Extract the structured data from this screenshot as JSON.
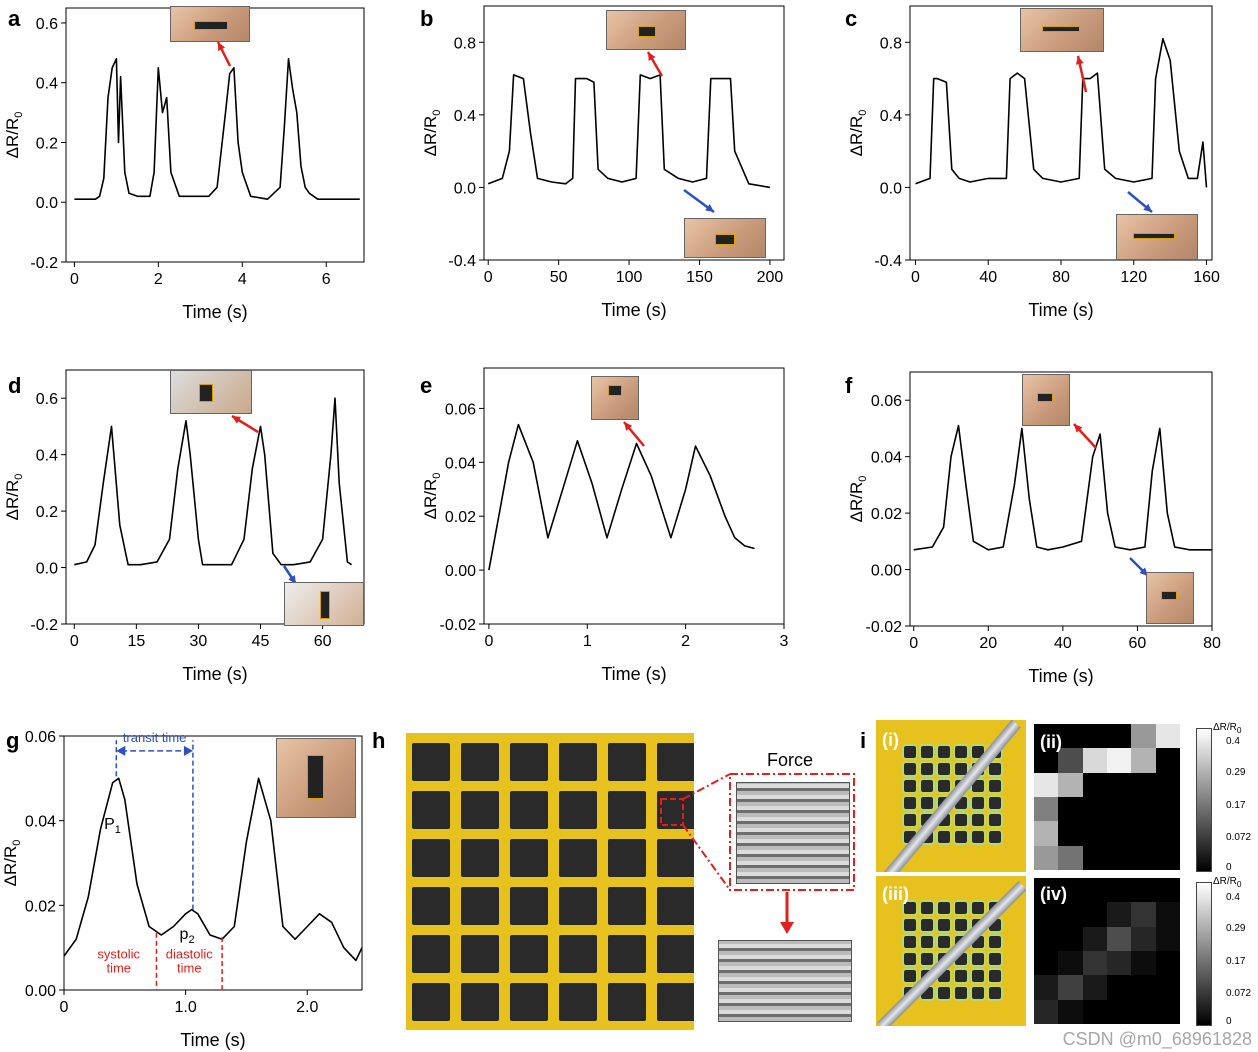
{
  "panel_labels": {
    "a": "a",
    "b": "b",
    "c": "c",
    "d": "d",
    "e": "e",
    "f": "f",
    "g": "g",
    "h": "h",
    "i": "i"
  },
  "xlabel": "Time (s)",
  "ylabel_main": "ΔR/R",
  "ylabel_sub": "0",
  "colors": {
    "line": "#000000",
    "arrow_red": "#e0201c",
    "arrow_blue": "#2c4fc2",
    "annot_red": "#e0201c",
    "annot_blue": "#2c4fc2"
  },
  "chart_data": [
    {
      "id": "a",
      "type": "line",
      "xlabel": "Time (s)",
      "ylabel": "ΔR/R0",
      "xlim": [
        -0.2,
        6.9
      ],
      "ylim": [
        -0.2,
        0.65
      ],
      "xticks": [
        0,
        2,
        4,
        6
      ],
      "yticks": [
        -0.2,
        0.0,
        0.2,
        0.4,
        0.6
      ],
      "x": [
        0,
        0.5,
        0.6,
        0.7,
        0.8,
        0.9,
        1.0,
        1.05,
        1.1,
        1.2,
        1.3,
        1.5,
        1.8,
        1.9,
        2.0,
        2.1,
        2.2,
        2.3,
        2.5,
        2.8,
        3.2,
        3.4,
        3.6,
        3.7,
        3.8,
        3.9,
        4.0,
        4.2,
        4.6,
        4.9,
        5.0,
        5.1,
        5.2,
        5.3,
        5.4,
        5.5,
        5.6,
        5.8,
        6.2,
        6.8
      ],
      "y": [
        0.01,
        0.01,
        0.02,
        0.08,
        0.35,
        0.45,
        0.48,
        0.2,
        0.42,
        0.1,
        0.03,
        0.02,
        0.02,
        0.1,
        0.45,
        0.3,
        0.35,
        0.1,
        0.02,
        0.02,
        0.02,
        0.05,
        0.3,
        0.43,
        0.45,
        0.2,
        0.1,
        0.02,
        0.01,
        0.05,
        0.25,
        0.48,
        0.38,
        0.3,
        0.12,
        0.05,
        0.03,
        0.01,
        0.01,
        0.01
      ]
    },
    {
      "id": "b",
      "type": "line",
      "xlabel": "Time (s)",
      "ylabel": "ΔR/R0",
      "xlim": [
        -3,
        210
      ],
      "ylim": [
        -0.4,
        1.0
      ],
      "xticks": [
        0,
        50,
        100,
        150,
        200
      ],
      "yticks": [
        -0.4,
        0.0,
        0.4,
        0.8
      ],
      "x": [
        0,
        10,
        15,
        18,
        25,
        30,
        35,
        45,
        55,
        60,
        62,
        70,
        75,
        78,
        85,
        95,
        105,
        108,
        115,
        122,
        125,
        135,
        145,
        155,
        158,
        165,
        172,
        175,
        185,
        200
      ],
      "y": [
        0.02,
        0.05,
        0.2,
        0.62,
        0.6,
        0.3,
        0.05,
        0.03,
        0.02,
        0.05,
        0.6,
        0.6,
        0.58,
        0.1,
        0.05,
        0.03,
        0.05,
        0.62,
        0.6,
        0.62,
        0.1,
        0.05,
        0.03,
        0.05,
        0.6,
        0.6,
        0.6,
        0.2,
        0.02,
        0.0
      ]
    },
    {
      "id": "c",
      "type": "line",
      "xlabel": "Time (s)",
      "ylabel": "ΔR/R0",
      "xlim": [
        -3,
        163
      ],
      "ylim": [
        -0.4,
        1.0
      ],
      "xticks": [
        0,
        40,
        80,
        120,
        160
      ],
      "yticks": [
        -0.4,
        0.0,
        0.4,
        0.8
      ],
      "x": [
        0,
        8,
        10,
        12,
        17,
        20,
        24,
        30,
        40,
        50,
        52,
        56,
        60,
        65,
        70,
        80,
        90,
        92,
        96,
        100,
        104,
        110,
        120,
        130,
        132,
        136,
        140,
        145,
        150,
        155,
        158,
        160
      ],
      "y": [
        0.02,
        0.05,
        0.6,
        0.6,
        0.58,
        0.1,
        0.05,
        0.03,
        0.05,
        0.05,
        0.6,
        0.63,
        0.6,
        0.1,
        0.05,
        0.03,
        0.05,
        0.6,
        0.6,
        0.63,
        0.1,
        0.05,
        0.03,
        0.05,
        0.6,
        0.82,
        0.7,
        0.2,
        0.05,
        0.05,
        0.25,
        0.0
      ]
    },
    {
      "id": "d",
      "type": "line",
      "xlabel": "Time (s)",
      "ylabel": "ΔR/R0",
      "xlim": [
        -2,
        70
      ],
      "ylim": [
        -0.2,
        0.7
      ],
      "xticks": [
        0,
        15,
        30,
        45,
        60
      ],
      "yticks": [
        -0.2,
        0.0,
        0.2,
        0.4,
        0.6
      ],
      "x": [
        0,
        3,
        5,
        7,
        9,
        11,
        13,
        16,
        20,
        23,
        25,
        27,
        28,
        30,
        31,
        34,
        38,
        41,
        43,
        45,
        46,
        48,
        50,
        53,
        57,
        60,
        62,
        63,
        64,
        66,
        67
      ],
      "y": [
        0.01,
        0.02,
        0.08,
        0.3,
        0.5,
        0.15,
        0.01,
        0.01,
        0.02,
        0.1,
        0.35,
        0.52,
        0.4,
        0.1,
        0.01,
        0.01,
        0.01,
        0.1,
        0.35,
        0.5,
        0.4,
        0.05,
        0.01,
        0.01,
        0.02,
        0.1,
        0.4,
        0.6,
        0.3,
        0.02,
        0.01
      ]
    },
    {
      "id": "e",
      "type": "line",
      "xlabel": "Time (s)",
      "ylabel": "ΔR/R0",
      "xlim": [
        -0.05,
        3.0
      ],
      "ylim": [
        -0.02,
        0.075
      ],
      "xticks": [
        0,
        1,
        2,
        3
      ],
      "yticks": [
        -0.02,
        0.0,
        0.02,
        0.04,
        0.06
      ],
      "x": [
        0,
        0.1,
        0.2,
        0.3,
        0.45,
        0.6,
        0.75,
        0.9,
        1.05,
        1.2,
        1.35,
        1.5,
        1.65,
        1.85,
        2.0,
        2.1,
        2.25,
        2.4,
        2.5,
        2.6,
        2.7
      ],
      "y": [
        0.0,
        0.02,
        0.04,
        0.054,
        0.04,
        0.012,
        0.03,
        0.048,
        0.032,
        0.012,
        0.03,
        0.047,
        0.035,
        0.012,
        0.03,
        0.046,
        0.035,
        0.02,
        0.012,
        0.009,
        0.008
      ]
    },
    {
      "id": "f",
      "type": "line",
      "xlabel": "Time (s)",
      "ylabel": "ΔR/R0",
      "xlim": [
        -1,
        80
      ],
      "ylim": [
        -0.02,
        0.07
      ],
      "xticks": [
        0,
        20,
        40,
        60,
        80
      ],
      "yticks": [
        -0.02,
        0.0,
        0.02,
        0.04,
        0.06
      ],
      "x": [
        0,
        5,
        8,
        10,
        12,
        14,
        16,
        20,
        24,
        27,
        29,
        31,
        33,
        36,
        40,
        45,
        48,
        50,
        52,
        54,
        58,
        62,
        64,
        66,
        68,
        70,
        74,
        80
      ],
      "y": [
        0.007,
        0.008,
        0.015,
        0.04,
        0.051,
        0.03,
        0.01,
        0.007,
        0.008,
        0.03,
        0.05,
        0.025,
        0.008,
        0.007,
        0.008,
        0.01,
        0.04,
        0.048,
        0.02,
        0.008,
        0.007,
        0.008,
        0.035,
        0.05,
        0.02,
        0.008,
        0.007,
        0.007
      ]
    },
    {
      "id": "g",
      "type": "line",
      "xlabel": "Time (s)",
      "ylabel": "ΔR/R0",
      "xlim": [
        0,
        2.45
      ],
      "ylim": [
        0,
        0.06
      ],
      "xticks": [
        0,
        1.0,
        2.0
      ],
      "xtick_labels": [
        "0",
        "1.0",
        "2.0"
      ],
      "yticks": [
        0.0,
        0.02,
        0.04,
        0.06
      ],
      "ytick_labels": [
        "0.00",
        "0.02",
        "0.04",
        "0.06"
      ],
      "x": [
        0,
        0.1,
        0.2,
        0.3,
        0.4,
        0.45,
        0.5,
        0.6,
        0.7,
        0.8,
        0.9,
        1.0,
        1.05,
        1.1,
        1.2,
        1.3,
        1.4,
        1.5,
        1.6,
        1.7,
        1.8,
        1.9,
        2.0,
        2.1,
        2.2,
        2.3,
        2.4,
        2.45
      ],
      "y": [
        0.008,
        0.012,
        0.022,
        0.038,
        0.049,
        0.05,
        0.045,
        0.025,
        0.015,
        0.013,
        0.015,
        0.018,
        0.019,
        0.018,
        0.013,
        0.012,
        0.015,
        0.035,
        0.05,
        0.04,
        0.015,
        0.012,
        0.015,
        0.018,
        0.016,
        0.01,
        0.007,
        0.01
      ],
      "annotations": {
        "transit": "transit time",
        "p1": "P",
        "p1_sub": "1",
        "p2": "p",
        "p2_sub": "2",
        "systolic_1": "systolic",
        "systolic_2": "time",
        "diastolic_1": "diastolic",
        "diastolic_2": "time"
      }
    }
  ],
  "panel_h": {
    "force": "Force"
  },
  "panel_i": {
    "tags": {
      "i": "(i)",
      "ii": "(ii)",
      "iii": "(iii)",
      "iv": "(iv)"
    },
    "colorbar_title": "ΔR/R",
    "colorbar_sub": "0",
    "ticks": [
      "0.4",
      "0.29",
      "0.17",
      "0.072",
      "0"
    ],
    "heat_ii": [
      [
        0,
        0,
        0,
        0,
        0.6,
        0.9
      ],
      [
        0,
        0.3,
        0.85,
        0.95,
        0.7,
        0
      ],
      [
        0.9,
        0.7,
        0,
        0,
        0,
        0
      ],
      [
        0.5,
        0,
        0,
        0,
        0,
        0
      ],
      [
        0.7,
        0,
        0,
        0,
        0,
        0
      ],
      [
        0.6,
        0.45,
        0,
        0,
        0,
        0
      ]
    ],
    "heat_iv": [
      [
        0,
        0,
        0,
        0,
        0,
        0
      ],
      [
        0,
        0,
        0,
        0.1,
        0.2,
        0.05
      ],
      [
        0,
        0,
        0.1,
        0.3,
        0.15,
        0.05
      ],
      [
        0,
        0.05,
        0.2,
        0.15,
        0.05,
        0
      ],
      [
        0.1,
        0.25,
        0.1,
        0,
        0,
        0
      ],
      [
        0.15,
        0.05,
        0,
        0,
        0,
        0
      ]
    ]
  },
  "watermark": "CSDN @m0_68961828"
}
